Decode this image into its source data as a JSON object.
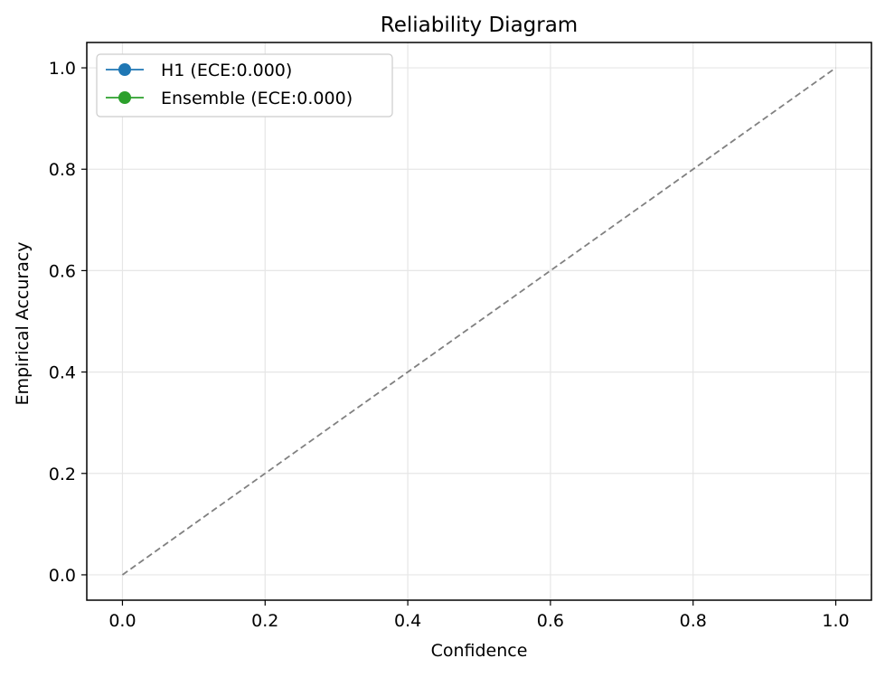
{
  "chart_data": {
    "type": "line",
    "title": "Reliability Diagram",
    "xlabel": "Confidence",
    "ylabel": "Empirical Accuracy",
    "xlim": [
      -0.05,
      1.05
    ],
    "ylim": [
      -0.05,
      1.05
    ],
    "xticks": [
      "0.0",
      "0.2",
      "0.4",
      "0.6",
      "0.8",
      "1.0"
    ],
    "yticks": [
      "0.0",
      "0.2",
      "0.4",
      "0.6",
      "0.8",
      "1.0"
    ],
    "grid": true,
    "legend_position": "upper-left",
    "reference_line": {
      "x": [
        0.0,
        1.0
      ],
      "y": [
        0.0,
        1.0
      ],
      "style": "dashed",
      "color": "#808080"
    },
    "series": [
      {
        "name": "H1 (ECE:0.000)",
        "color": "#1f77b4",
        "x": [],
        "y": []
      },
      {
        "name": "Ensemble (ECE:0.000)",
        "color": "#2ca02c",
        "x": [],
        "y": []
      }
    ]
  }
}
